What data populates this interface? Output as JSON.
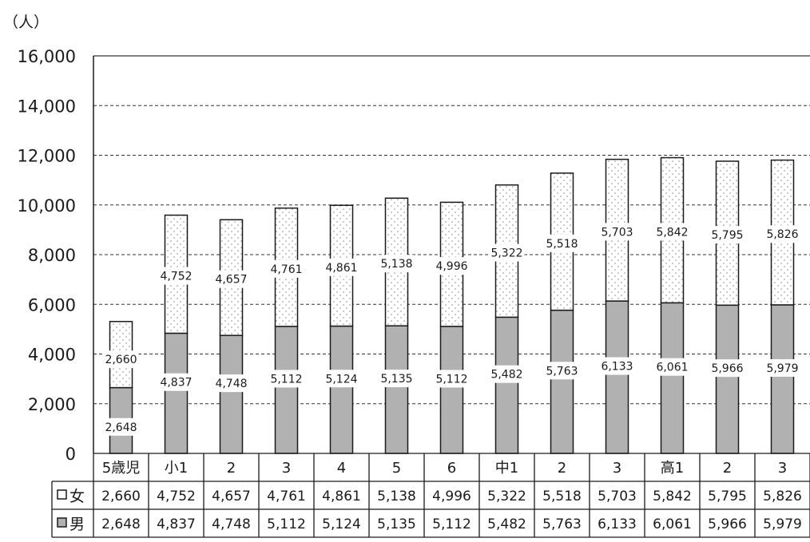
{
  "chart_data": {
    "type": "bar",
    "stacked": true,
    "unit_label": "（人）",
    "categories": [
      "5歳児",
      "小1",
      "2",
      "3",
      "4",
      "5",
      "6",
      "中1",
      "2",
      "3",
      "高1",
      "2",
      "3"
    ],
    "series": [
      {
        "name": "男",
        "values": [
          2648,
          4837,
          4748,
          5112,
          5124,
          5135,
          5112,
          5482,
          5763,
          6133,
          6061,
          5966,
          5979
        ]
      },
      {
        "name": "女",
        "values": [
          2660,
          4752,
          4657,
          4761,
          4861,
          5138,
          4996,
          5322,
          5518,
          5703,
          5842,
          5795,
          5826
        ]
      }
    ],
    "ylim": [
      0,
      16000
    ],
    "yticks": [
      0,
      2000,
      4000,
      6000,
      8000,
      10000,
      12000,
      14000,
      16000
    ],
    "ytick_labels": [
      "0",
      "2,000",
      "4,000",
      "6,000",
      "8,000",
      "10,000",
      "12,000",
      "14,000",
      "16,000"
    ],
    "grid": true,
    "legend": "data table below chart",
    "colors": {
      "男": "#b1b1b1",
      "女": "#ffffff",
      "border": "#1a1a1a",
      "grid": "#333333",
      "dots": "#9a9a9a"
    },
    "table": {
      "rows": [
        {
          "label": "女",
          "series": "女"
        },
        {
          "label": "男",
          "series": "男"
        }
      ]
    }
  }
}
